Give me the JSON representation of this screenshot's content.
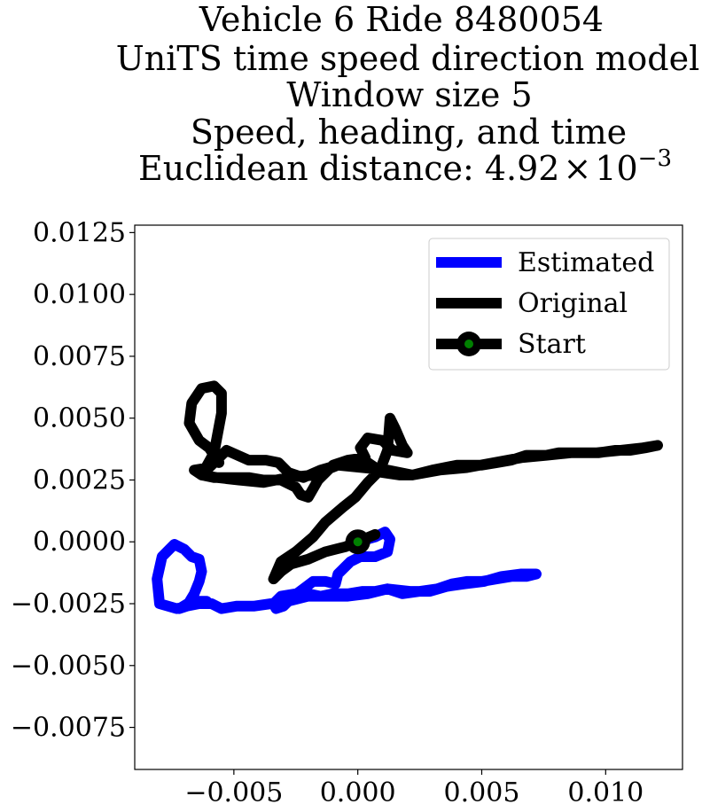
{
  "chart_data": {
    "type": "line",
    "title_lines": [
      "Vehicle 6 Ride 8480054",
      "UniTS time speed direction model",
      "Window size 5",
      "Speed, heading, and time"
    ],
    "title_last_prefix": "Euclidean distance: ",
    "title_last_mantissa": "4.92",
    "title_last_times": "×",
    "title_last_base": "10",
    "title_last_exponent": "−3",
    "xlim": [
      -0.009,
      0.0131
    ],
    "ylim": [
      -0.0092,
      0.0128
    ],
    "x_ticks": [
      {
        "value": -0.005,
        "label": "−0.005"
      },
      {
        "value": 0.0,
        "label": "0.000"
      },
      {
        "value": 0.005,
        "label": "0.005"
      },
      {
        "value": 0.01,
        "label": "0.010"
      }
    ],
    "y_ticks": [
      {
        "value": 0.0125,
        "label": "0.0125"
      },
      {
        "value": 0.01,
        "label": "0.0100"
      },
      {
        "value": 0.0075,
        "label": "0.0075"
      },
      {
        "value": 0.005,
        "label": "0.0050"
      },
      {
        "value": 0.0025,
        "label": "0.0025"
      },
      {
        "value": 0.0,
        "label": "0.0000"
      },
      {
        "value": -0.0025,
        "label": "−0.0025"
      },
      {
        "value": -0.005,
        "label": "−0.0050"
      },
      {
        "value": -0.0075,
        "label": "−0.0075"
      }
    ],
    "grid": false,
    "legend_position": "upper-right",
    "series": [
      {
        "name": "Estimated",
        "color": "#0000ff",
        "points": [
          [
            0.0,
            0.0
          ],
          [
            0.0007,
            0.0002
          ],
          [
            0.0011,
            0.0004
          ],
          [
            0.0013,
            0.0001
          ],
          [
            0.0012,
            -0.0004
          ],
          [
            0.0007,
            -0.0006
          ],
          [
            0.0001,
            -0.0006
          ],
          [
            -0.0003,
            -0.0008
          ],
          [
            -0.0008,
            -0.0013
          ],
          [
            -0.0009,
            -0.0017
          ],
          [
            -0.0013,
            -0.0016
          ],
          [
            -0.0018,
            -0.0016
          ],
          [
            -0.0022,
            -0.0019
          ],
          [
            -0.0026,
            -0.0022
          ],
          [
            -0.003,
            -0.0026
          ],
          [
            -0.0033,
            -0.0027
          ],
          [
            -0.0034,
            -0.0025
          ],
          [
            -0.0031,
            -0.0022
          ],
          [
            -0.0025,
            -0.0021
          ],
          [
            -0.002,
            -0.0021
          ],
          [
            -0.0015,
            -0.0022
          ],
          [
            -0.001,
            -0.0021
          ],
          [
            -0.0004,
            -0.0021
          ],
          [
            0.0002,
            -0.002
          ],
          [
            0.0007,
            -0.002
          ],
          [
            0.0012,
            -0.0019
          ],
          [
            0.0018,
            -0.0021
          ],
          [
            0.0025,
            -0.002
          ],
          [
            0.0032,
            -0.0019
          ],
          [
            0.0038,
            -0.0017
          ],
          [
            0.0044,
            -0.0016
          ],
          [
            0.005,
            -0.0016
          ],
          [
            0.0056,
            -0.0015
          ],
          [
            0.0062,
            -0.0014
          ],
          [
            0.0068,
            -0.0014
          ],
          [
            0.0072,
            -0.0013
          ],
          [
            0.0066,
            -0.0013
          ],
          [
            0.0058,
            -0.0014
          ],
          [
            0.0051,
            -0.0016
          ],
          [
            0.0043,
            -0.0017
          ],
          [
            0.0036,
            -0.0018
          ],
          [
            0.0029,
            -0.002
          ],
          [
            0.0021,
            -0.002
          ],
          [
            0.0012,
            -0.0019
          ],
          [
            0.0004,
            -0.0021
          ],
          [
            -0.0004,
            -0.0022
          ],
          [
            -0.0012,
            -0.0022
          ],
          [
            -0.002,
            -0.0022
          ],
          [
            -0.0028,
            -0.0024
          ],
          [
            -0.0035,
            -0.0025
          ],
          [
            -0.0042,
            -0.0026
          ],
          [
            -0.0049,
            -0.0026
          ],
          [
            -0.0055,
            -0.0027
          ],
          [
            -0.0059,
            -0.0025
          ],
          [
            -0.0064,
            -0.0025
          ],
          [
            -0.0069,
            -0.0026
          ],
          [
            -0.0073,
            -0.0027
          ],
          [
            -0.008,
            -0.0025
          ],
          [
            -0.0081,
            -0.0015
          ],
          [
            -0.0079,
            -0.0006
          ],
          [
            -0.0074,
            -0.0001
          ],
          [
            -0.007,
            -0.0003
          ],
          [
            -0.0067,
            -0.0006
          ],
          [
            -0.0064,
            -0.0007
          ],
          [
            -0.0063,
            -0.0012
          ],
          [
            -0.0064,
            -0.0016
          ],
          [
            -0.0066,
            -0.0021
          ],
          [
            -0.0069,
            -0.0026
          ],
          [
            -0.0072,
            -0.0027
          ],
          [
            -0.0067,
            -0.0024
          ],
          [
            -0.0061,
            -0.0024
          ]
        ]
      },
      {
        "name": "Original",
        "color": "#000000",
        "points": [
          [
            0.0,
            0.0
          ],
          [
            0.0007,
            0.0003
          ],
          [
            -0.0005,
            -0.0002
          ],
          [
            -0.0013,
            -0.0004
          ],
          [
            -0.002,
            -0.0007
          ],
          [
            -0.0027,
            -0.0009
          ],
          [
            -0.0031,
            -0.0012
          ],
          [
            -0.0034,
            -0.0015
          ],
          [
            -0.0031,
            -0.0008
          ],
          [
            -0.0025,
            -0.0004
          ],
          [
            -0.0018,
            0.0002
          ],
          [
            -0.0013,
            0.0008
          ],
          [
            -0.0006,
            0.0014
          ],
          [
            -0.0001,
            0.0018
          ],
          [
            0.0004,
            0.0024
          ],
          [
            0.0009,
            0.0029
          ],
          [
            0.0012,
            0.0037
          ],
          [
            0.0013,
            0.005
          ],
          [
            0.0015,
            0.0046
          ],
          [
            0.0018,
            0.0039
          ],
          [
            0.002,
            0.0036
          ],
          [
            0.0014,
            0.0037
          ],
          [
            0.001,
            0.0041
          ],
          [
            0.0004,
            0.0042
          ],
          [
            0.0001,
            0.0038
          ],
          [
            0.0003,
            0.0034
          ],
          [
            -0.0004,
            0.0033
          ],
          [
            -0.001,
            0.0031
          ],
          [
            -0.0016,
            0.0025
          ],
          [
            -0.002,
            0.0018
          ],
          [
            -0.0023,
            0.0019
          ],
          [
            -0.0025,
            0.0022
          ],
          [
            -0.0031,
            0.0025
          ],
          [
            -0.0038,
            0.0025
          ],
          [
            -0.0044,
            0.0026
          ],
          [
            -0.0052,
            0.0026
          ],
          [
            -0.0058,
            0.0026
          ],
          [
            -0.0063,
            0.0027
          ],
          [
            -0.0066,
            0.0029
          ],
          [
            -0.006,
            0.003
          ],
          [
            -0.0053,
            0.0037
          ],
          [
            -0.0044,
            0.0033
          ],
          [
            -0.0037,
            0.0033
          ],
          [
            -0.0032,
            0.0032
          ],
          [
            -0.0028,
            0.0028
          ],
          [
            -0.0022,
            0.0026
          ],
          [
            -0.0015,
            0.0029
          ],
          [
            -0.0008,
            0.0031
          ],
          [
            -0.0002,
            0.0031
          ],
          [
            0.0004,
            0.0032
          ],
          [
            0.001,
            0.0028
          ],
          [
            0.0017,
            0.0027
          ],
          [
            0.0022,
            0.0027
          ],
          [
            0.003,
            0.0029
          ],
          [
            0.004,
            0.0031
          ],
          [
            0.005,
            0.0031
          ],
          [
            0.0056,
            0.0032
          ],
          [
            0.0062,
            0.0033
          ],
          [
            0.0068,
            0.0035
          ],
          [
            0.0076,
            0.0035
          ],
          [
            0.0081,
            0.0036
          ],
          [
            0.009,
            0.0036
          ],
          [
            0.0097,
            0.0036
          ],
          [
            0.0104,
            0.0037
          ],
          [
            0.011,
            0.0037
          ],
          [
            0.0116,
            0.0038
          ],
          [
            0.0121,
            0.0039
          ],
          [
            0.0115,
            0.0038
          ],
          [
            0.0106,
            0.0037
          ],
          [
            0.0096,
            0.0036
          ],
          [
            0.0086,
            0.0036
          ],
          [
            0.0076,
            0.0035
          ],
          [
            0.0066,
            0.0034
          ],
          [
            0.0055,
            0.0032
          ],
          [
            0.0044,
            0.003
          ],
          [
            0.0033,
            0.0029
          ],
          [
            0.0022,
            0.0027
          ],
          [
            0.0012,
            0.0029
          ],
          [
            0.0002,
            0.003
          ],
          [
            -0.0008,
            0.0031
          ],
          [
            -0.0018,
            0.0027
          ],
          [
            -0.0028,
            0.0026
          ],
          [
            -0.0038,
            0.0024
          ],
          [
            -0.0048,
            0.0025
          ],
          [
            -0.0057,
            0.0026
          ],
          [
            -0.0063,
            0.0027
          ],
          [
            -0.0058,
            0.0036
          ],
          [
            -0.0055,
            0.0052
          ],
          [
            -0.0055,
            0.006
          ],
          [
            -0.0058,
            0.0063
          ],
          [
            -0.0063,
            0.0062
          ],
          [
            -0.0067,
            0.0056
          ],
          [
            -0.0068,
            0.0048
          ],
          [
            -0.0064,
            0.0041
          ],
          [
            -0.006,
            0.0038
          ],
          [
            -0.0056,
            0.0032
          ]
        ]
      }
    ],
    "start_point": {
      "name": "Start",
      "x": 0.0,
      "y": 0.0,
      "ring_color": "#000000",
      "fill_color": "#008000"
    }
  }
}
